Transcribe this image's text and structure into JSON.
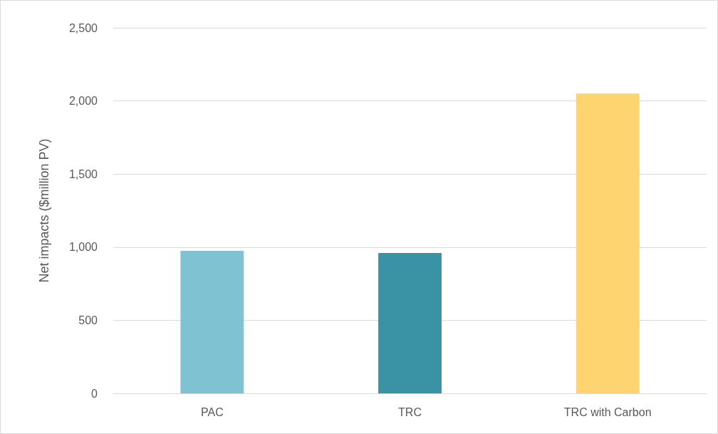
{
  "chart_data": {
    "type": "bar",
    "ylabel": "Net impacts ($million PV)",
    "categories": [
      "PAC",
      "TRC",
      "TRC with Carbon"
    ],
    "values": [
      975,
      960,
      2050
    ],
    "colors": [
      "#7fc3d3",
      "#3a92a5",
      "#fdd46f"
    ],
    "ylim": [
      0,
      2500
    ],
    "yticks": [
      0,
      500,
      {
        "value": 1000,
        "label": "1,000"
      },
      {
        "value": 1500,
        "label": "1,500"
      },
      {
        "value": 2000,
        "label": "2,000"
      },
      {
        "value": 2500,
        "label": "2,500"
      }
    ],
    "grid": "y"
  }
}
